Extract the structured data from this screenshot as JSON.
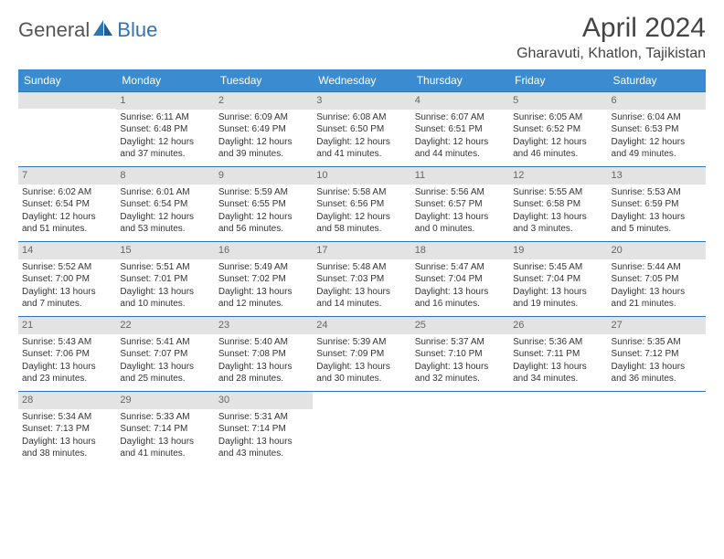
{
  "brand": {
    "part1": "General",
    "part2": "Blue"
  },
  "title": "April 2024",
  "location": "Gharavuti, Khatlon, Tajikistan",
  "colors": {
    "header_bg": "#3a8bd0",
    "header_text": "#ffffff",
    "rule": "#2e75b6",
    "band_bg": "#e3e3e3",
    "text": "#333333",
    "daynum": "#666666"
  },
  "typography": {
    "month_title_fontsize": 30,
    "location_fontsize": 16,
    "header_fontsize": 12,
    "cell_fontsize": 10
  },
  "weekdays": [
    "Sunday",
    "Monday",
    "Tuesday",
    "Wednesday",
    "Thursday",
    "Friday",
    "Saturday"
  ],
  "weeks": [
    [
      {
        "blank": true,
        "band": true
      },
      {
        "day": 1,
        "band": true,
        "sunrise": "Sunrise: 6:11 AM",
        "sunset": "Sunset: 6:48 PM",
        "daylight1": "Daylight: 12 hours",
        "daylight2": "and 37 minutes."
      },
      {
        "day": 2,
        "band": true,
        "sunrise": "Sunrise: 6:09 AM",
        "sunset": "Sunset: 6:49 PM",
        "daylight1": "Daylight: 12 hours",
        "daylight2": "and 39 minutes."
      },
      {
        "day": 3,
        "band": true,
        "sunrise": "Sunrise: 6:08 AM",
        "sunset": "Sunset: 6:50 PM",
        "daylight1": "Daylight: 12 hours",
        "daylight2": "and 41 minutes."
      },
      {
        "day": 4,
        "band": true,
        "sunrise": "Sunrise: 6:07 AM",
        "sunset": "Sunset: 6:51 PM",
        "daylight1": "Daylight: 12 hours",
        "daylight2": "and 44 minutes."
      },
      {
        "day": 5,
        "band": true,
        "sunrise": "Sunrise: 6:05 AM",
        "sunset": "Sunset: 6:52 PM",
        "daylight1": "Daylight: 12 hours",
        "daylight2": "and 46 minutes."
      },
      {
        "day": 6,
        "band": true,
        "sunrise": "Sunrise: 6:04 AM",
        "sunset": "Sunset: 6:53 PM",
        "daylight1": "Daylight: 12 hours",
        "daylight2": "and 49 minutes."
      }
    ],
    [
      {
        "day": 7,
        "band": true,
        "sunrise": "Sunrise: 6:02 AM",
        "sunset": "Sunset: 6:54 PM",
        "daylight1": "Daylight: 12 hours",
        "daylight2": "and 51 minutes."
      },
      {
        "day": 8,
        "band": true,
        "sunrise": "Sunrise: 6:01 AM",
        "sunset": "Sunset: 6:54 PM",
        "daylight1": "Daylight: 12 hours",
        "daylight2": "and 53 minutes."
      },
      {
        "day": 9,
        "band": true,
        "sunrise": "Sunrise: 5:59 AM",
        "sunset": "Sunset: 6:55 PM",
        "daylight1": "Daylight: 12 hours",
        "daylight2": "and 56 minutes."
      },
      {
        "day": 10,
        "band": true,
        "sunrise": "Sunrise: 5:58 AM",
        "sunset": "Sunset: 6:56 PM",
        "daylight1": "Daylight: 12 hours",
        "daylight2": "and 58 minutes."
      },
      {
        "day": 11,
        "band": true,
        "sunrise": "Sunrise: 5:56 AM",
        "sunset": "Sunset: 6:57 PM",
        "daylight1": "Daylight: 13 hours",
        "daylight2": "and 0 minutes."
      },
      {
        "day": 12,
        "band": true,
        "sunrise": "Sunrise: 5:55 AM",
        "sunset": "Sunset: 6:58 PM",
        "daylight1": "Daylight: 13 hours",
        "daylight2": "and 3 minutes."
      },
      {
        "day": 13,
        "band": true,
        "sunrise": "Sunrise: 5:53 AM",
        "sunset": "Sunset: 6:59 PM",
        "daylight1": "Daylight: 13 hours",
        "daylight2": "and 5 minutes."
      }
    ],
    [
      {
        "day": 14,
        "band": true,
        "sunrise": "Sunrise: 5:52 AM",
        "sunset": "Sunset: 7:00 PM",
        "daylight1": "Daylight: 13 hours",
        "daylight2": "and 7 minutes."
      },
      {
        "day": 15,
        "band": true,
        "sunrise": "Sunrise: 5:51 AM",
        "sunset": "Sunset: 7:01 PM",
        "daylight1": "Daylight: 13 hours",
        "daylight2": "and 10 minutes."
      },
      {
        "day": 16,
        "band": true,
        "sunrise": "Sunrise: 5:49 AM",
        "sunset": "Sunset: 7:02 PM",
        "daylight1": "Daylight: 13 hours",
        "daylight2": "and 12 minutes."
      },
      {
        "day": 17,
        "band": true,
        "sunrise": "Sunrise: 5:48 AM",
        "sunset": "Sunset: 7:03 PM",
        "daylight1": "Daylight: 13 hours",
        "daylight2": "and 14 minutes."
      },
      {
        "day": 18,
        "band": true,
        "sunrise": "Sunrise: 5:47 AM",
        "sunset": "Sunset: 7:04 PM",
        "daylight1": "Daylight: 13 hours",
        "daylight2": "and 16 minutes."
      },
      {
        "day": 19,
        "band": true,
        "sunrise": "Sunrise: 5:45 AM",
        "sunset": "Sunset: 7:04 PM",
        "daylight1": "Daylight: 13 hours",
        "daylight2": "and 19 minutes."
      },
      {
        "day": 20,
        "band": true,
        "sunrise": "Sunrise: 5:44 AM",
        "sunset": "Sunset: 7:05 PM",
        "daylight1": "Daylight: 13 hours",
        "daylight2": "and 21 minutes."
      }
    ],
    [
      {
        "day": 21,
        "band": true,
        "sunrise": "Sunrise: 5:43 AM",
        "sunset": "Sunset: 7:06 PM",
        "daylight1": "Daylight: 13 hours",
        "daylight2": "and 23 minutes."
      },
      {
        "day": 22,
        "band": true,
        "sunrise": "Sunrise: 5:41 AM",
        "sunset": "Sunset: 7:07 PM",
        "daylight1": "Daylight: 13 hours",
        "daylight2": "and 25 minutes."
      },
      {
        "day": 23,
        "band": true,
        "sunrise": "Sunrise: 5:40 AM",
        "sunset": "Sunset: 7:08 PM",
        "daylight1": "Daylight: 13 hours",
        "daylight2": "and 28 minutes."
      },
      {
        "day": 24,
        "band": true,
        "sunrise": "Sunrise: 5:39 AM",
        "sunset": "Sunset: 7:09 PM",
        "daylight1": "Daylight: 13 hours",
        "daylight2": "and 30 minutes."
      },
      {
        "day": 25,
        "band": true,
        "sunrise": "Sunrise: 5:37 AM",
        "sunset": "Sunset: 7:10 PM",
        "daylight1": "Daylight: 13 hours",
        "daylight2": "and 32 minutes."
      },
      {
        "day": 26,
        "band": true,
        "sunrise": "Sunrise: 5:36 AM",
        "sunset": "Sunset: 7:11 PM",
        "daylight1": "Daylight: 13 hours",
        "daylight2": "and 34 minutes."
      },
      {
        "day": 27,
        "band": true,
        "sunrise": "Sunrise: 5:35 AM",
        "sunset": "Sunset: 7:12 PM",
        "daylight1": "Daylight: 13 hours",
        "daylight2": "and 36 minutes."
      }
    ],
    [
      {
        "day": 28,
        "band": true,
        "sunrise": "Sunrise: 5:34 AM",
        "sunset": "Sunset: 7:13 PM",
        "daylight1": "Daylight: 13 hours",
        "daylight2": "and 38 minutes."
      },
      {
        "day": 29,
        "band": true,
        "sunrise": "Sunrise: 5:33 AM",
        "sunset": "Sunset: 7:14 PM",
        "daylight1": "Daylight: 13 hours",
        "daylight2": "and 41 minutes."
      },
      {
        "day": 30,
        "band": true,
        "sunrise": "Sunrise: 5:31 AM",
        "sunset": "Sunset: 7:14 PM",
        "daylight1": "Daylight: 13 hours",
        "daylight2": "and 43 minutes."
      },
      {
        "blank": true
      },
      {
        "blank": true
      },
      {
        "blank": true
      },
      {
        "blank": true
      }
    ]
  ]
}
